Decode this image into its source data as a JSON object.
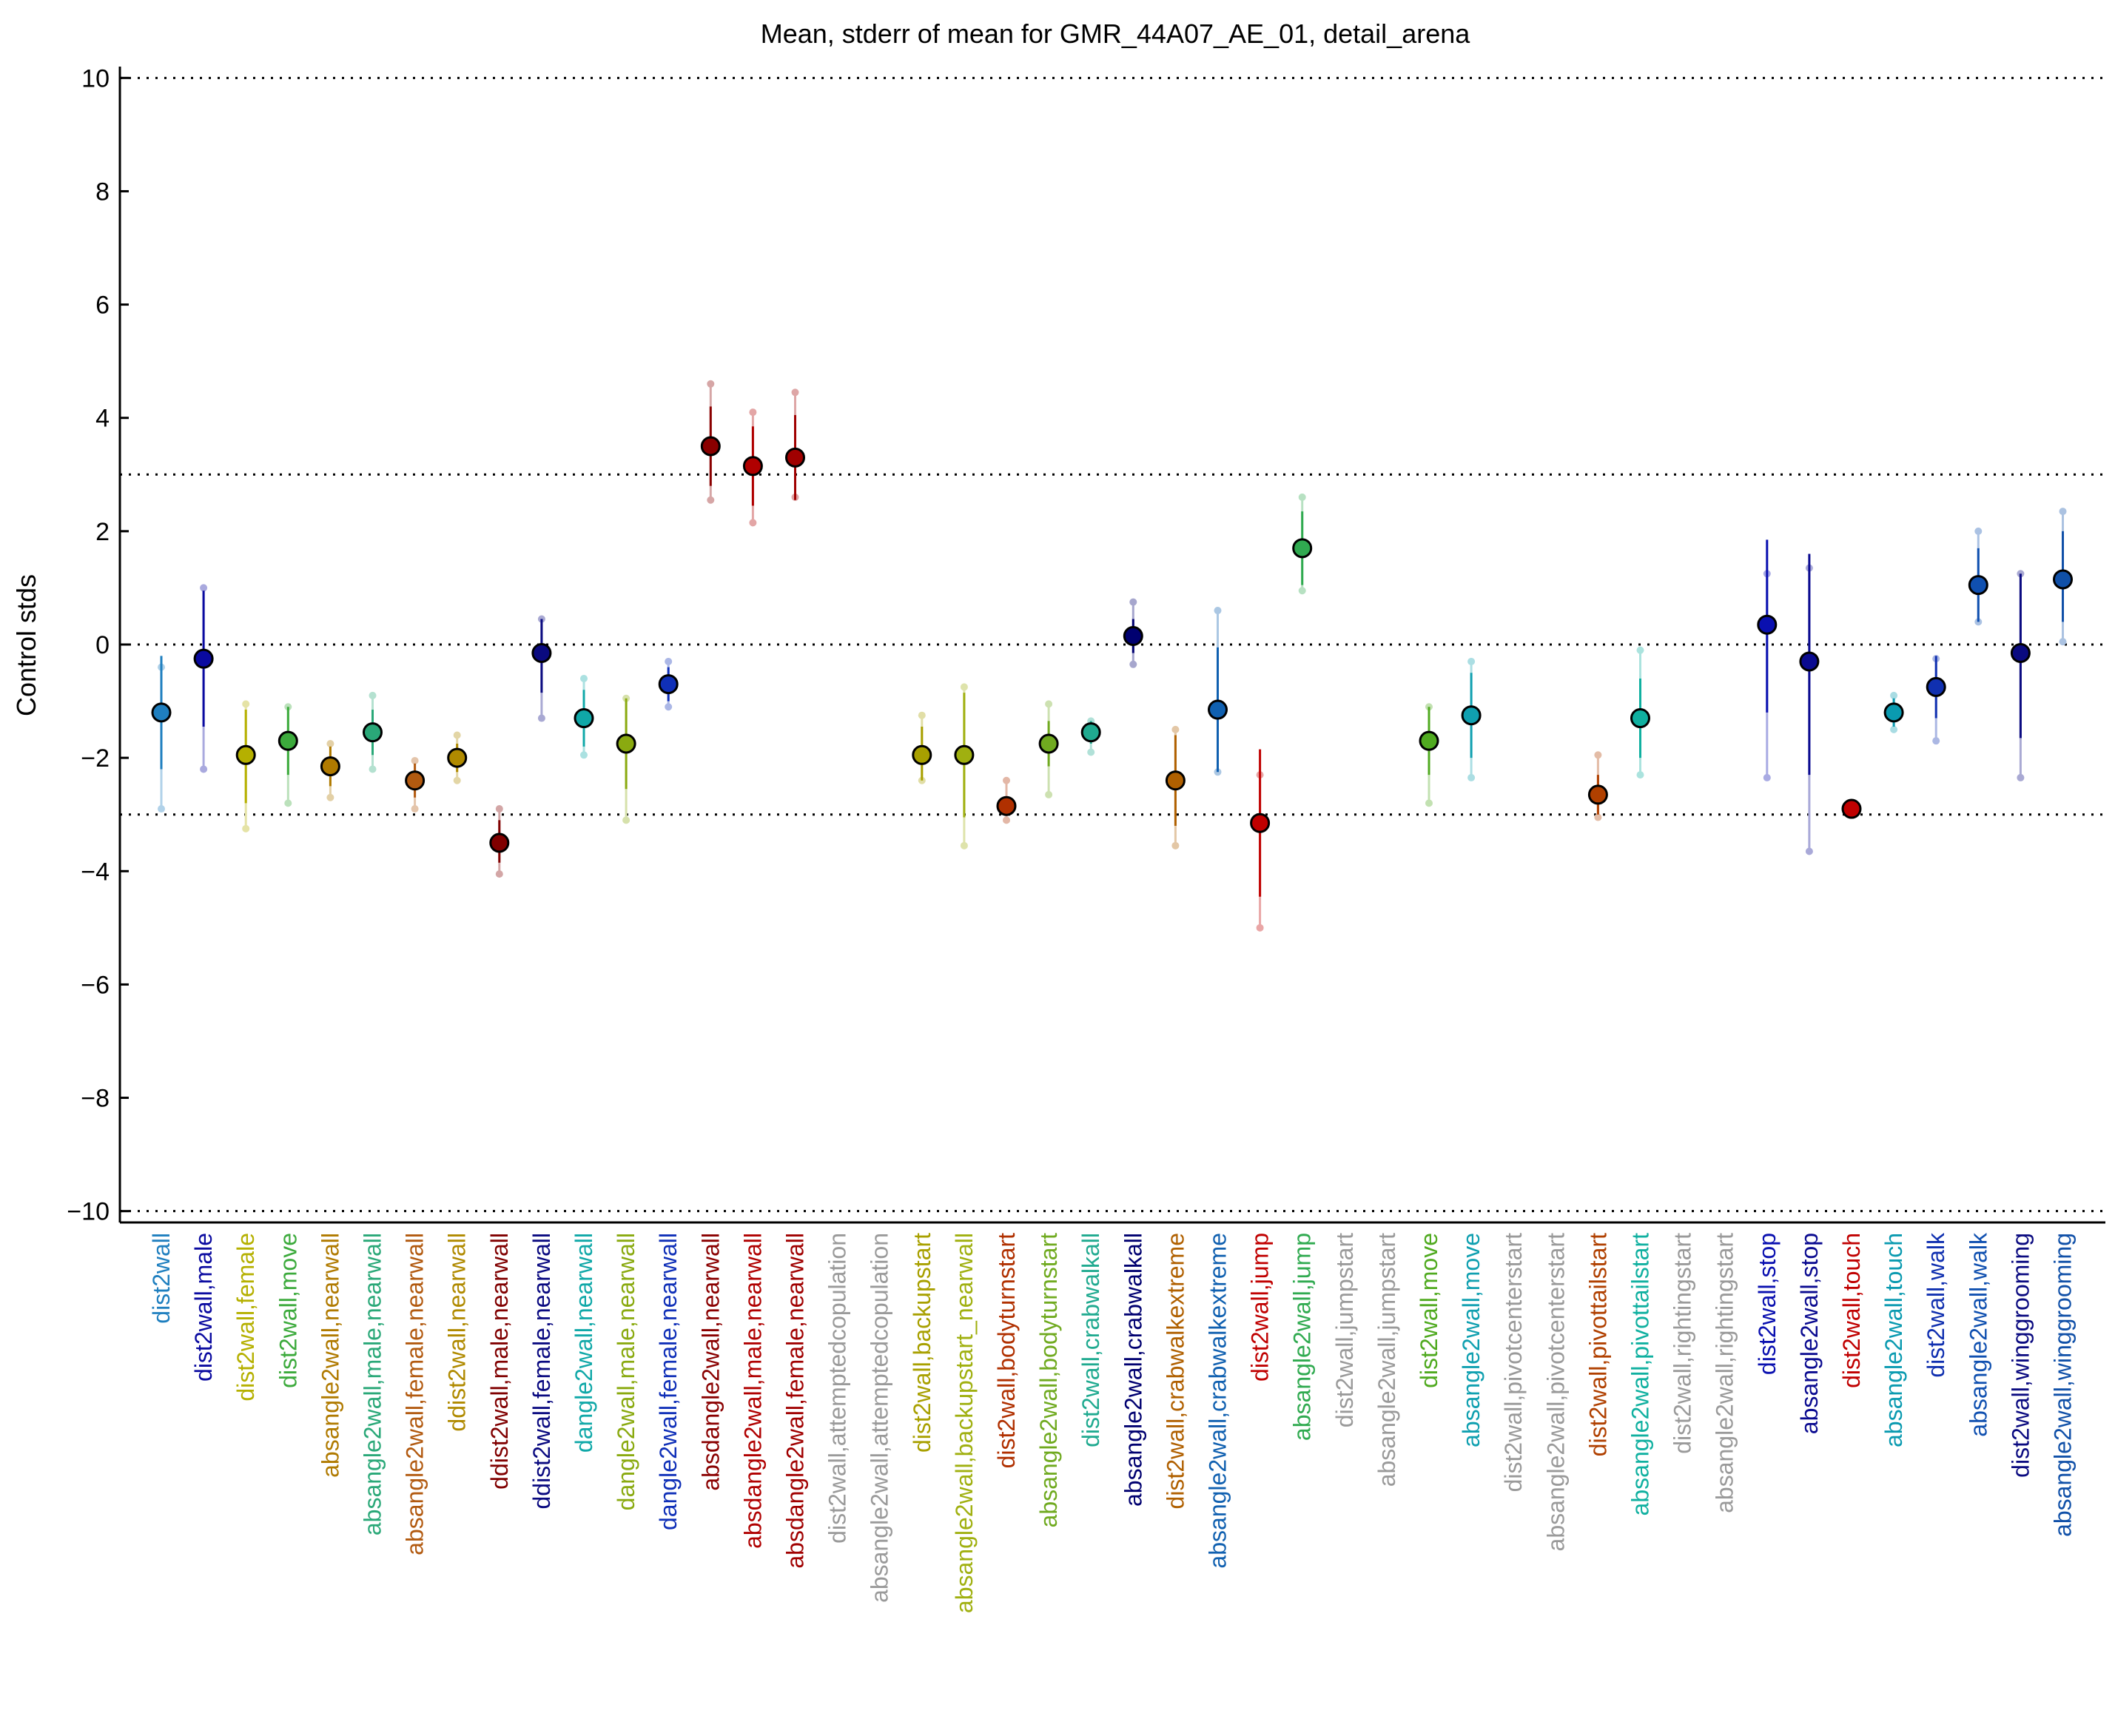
{
  "chart_data": {
    "type": "scatter",
    "title": "Mean, stderr of mean for GMR_44A07_AE_01, detail_arena",
    "xlabel": "",
    "ylabel": "Control stds",
    "ylim": [
      -10.2,
      10.2
    ],
    "yticks": [
      10,
      8,
      6,
      4,
      2,
      0,
      -2,
      -4,
      -6,
      -8,
      -10
    ],
    "ytick_labels": [
      "10",
      "8",
      "6",
      "4",
      "2",
      "0",
      "−2",
      "−4",
      "−6",
      "−8",
      "−10"
    ],
    "reference_lines": [
      10,
      3,
      0,
      -3,
      -10
    ],
    "grid": false,
    "legend": "none",
    "categories": [
      "dist2wall",
      "dist2wall,male",
      "dist2wall,female",
      "dist2wall,move",
      "absangle2wall,nearwall",
      "absangle2wall,male,nearwall",
      "absangle2wall,female,nearwall",
      "ddist2wall,nearwall",
      "ddist2wall,male,nearwall",
      "ddist2wall,female,nearwall",
      "dangle2wall,nearwall",
      "dangle2wall,male,nearwall",
      "dangle2wall,female,nearwall",
      "absdangle2wall,nearwall",
      "absdangle2wall,male,nearwall",
      "absdangle2wall,female,nearwall",
      "dist2wall,attemptedcopulation",
      "absangle2wall,attemptedcopulation",
      "dist2wall,backupstart",
      "absangle2wall,backupstart_nearwall",
      "dist2wall,bodyturnstart",
      "absangle2wall,bodyturnstart",
      "dist2wall,crabwalkall",
      "absangle2wall,crabwalkall",
      "dist2wall,crabwalkextreme",
      "absangle2wall,crabwalkextreme",
      "dist2wall,jump",
      "absangle2wall,jump",
      "dist2wall,jumpstart",
      "absangle2wall,jumpstart",
      "dist2wall,move",
      "absangle2wall,move",
      "dist2wall,pivotcenterstart",
      "absangle2wall,pivotcenterstart",
      "dist2wall,pivottailstart",
      "absangle2wall,pivottailstart",
      "dist2wall,rightingstart",
      "absangle2wall,rightingstart",
      "dist2wall,stop",
      "absangle2wall,stop",
      "dist2wall,touch",
      "absangle2wall,touch",
      "dist2wall,walk",
      "absangle2wall,walk",
      "dist2wall,winggrooming",
      "absangle2wall,winggrooming"
    ],
    "colors": [
      "#1f7fbf",
      "#0a0aa0",
      "#b5b000",
      "#3caa3c",
      "#b07a00",
      "#2aa878",
      "#b25a10",
      "#b08a00",
      "#800000",
      "#0a0a80",
      "#10a8a8",
      "#8aaa10",
      "#1030b8",
      "#8a0000",
      "#b00000",
      "#a00000",
      "#9a9a9a",
      "#9a9a9a",
      "#a8a000",
      "#a0b010",
      "#b03000",
      "#70aa20",
      "#20aa90",
      "#000070",
      "#b06000",
      "#1060b0",
      "#c00000",
      "#30aa50",
      "#9a9a9a",
      "#9a9a9a",
      "#50aa20",
      "#10a0b0",
      "#9a9a9a",
      "#9a9a9a",
      "#b04000",
      "#10b0a0",
      "#9a9a9a",
      "#9a9a9a",
      "#0a10b0",
      "#0a0a90",
      "#c00000",
      "#0a9ab0",
      "#1030b0",
      "#1050b0",
      "#0a0a80",
      "#1050a8"
    ],
    "series": [
      {
        "mean": [
          -1.2,
          -0.25,
          -1.95,
          -1.7,
          -2.15,
          -1.55,
          -2.4,
          -2.0,
          -3.5,
          -0.15,
          -1.3,
          -1.75,
          -0.7,
          3.5,
          3.15,
          3.3,
          null,
          null,
          -1.95,
          -1.95,
          -2.85,
          -1.75,
          -1.55,
          0.15,
          -2.4,
          -1.15,
          -3.15,
          1.7,
          null,
          null,
          -1.7,
          -1.25,
          null,
          null,
          -2.65,
          -1.3,
          null,
          null,
          0.35,
          -0.3,
          -2.9,
          -1.2,
          -0.75,
          1.05,
          -0.15,
          1.15
        ],
        "sem_low": [
          -2.2,
          -1.45,
          -2.8,
          -2.3,
          -2.5,
          -1.95,
          -2.7,
          -2.25,
          -3.85,
          -0.85,
          -1.8,
          -2.55,
          -1.0,
          2.8,
          2.45,
          2.55,
          null,
          null,
          -2.4,
          -3.05,
          -3.0,
          -2.15,
          -1.75,
          -0.15,
          -3.2,
          -2.25,
          -4.45,
          1.05,
          null,
          null,
          -2.3,
          -2.0,
          null,
          null,
          -3.0,
          -2.0,
          null,
          null,
          -1.2,
          -2.3,
          -3.05,
          -1.45,
          -1.3,
          0.4,
          -1.65,
          0.4
        ],
        "sem_high": [
          -0.2,
          0.95,
          -1.15,
          -1.1,
          -1.8,
          -1.15,
          -2.1,
          -1.75,
          -3.1,
          0.45,
          -0.8,
          -0.95,
          -0.4,
          4.2,
          3.85,
          4.05,
          null,
          null,
          -1.45,
          -0.85,
          -2.7,
          -1.35,
          -1.35,
          0.45,
          -1.6,
          -0.05,
          -1.85,
          2.35,
          null,
          null,
          -1.1,
          -0.5,
          null,
          null,
          -2.3,
          -0.6,
          null,
          null,
          1.85,
          1.6,
          -2.75,
          -0.95,
          -0.2,
          1.7,
          1.25,
          2.0
        ],
        "range_low": [
          -2.9,
          -2.2,
          -3.25,
          -2.8,
          -2.7,
          -2.2,
          -2.9,
          -2.4,
          -4.05,
          -1.3,
          -1.95,
          -3.1,
          -1.1,
          2.55,
          2.15,
          2.6,
          null,
          null,
          -2.4,
          -3.55,
          -3.1,
          -2.65,
          -1.9,
          -0.35,
          -3.55,
          -2.25,
          -5.0,
          0.95,
          null,
          null,
          -2.8,
          -2.35,
          null,
          null,
          -3.05,
          -2.3,
          null,
          null,
          -2.35,
          -3.65,
          -2.95,
          -1.5,
          -1.7,
          0.4,
          -2.35,
          0.05
        ],
        "range_high": [
          -0.4,
          1.0,
          -1.05,
          -1.1,
          -1.75,
          -0.9,
          -2.05,
          -1.6,
          -2.9,
          0.45,
          -0.6,
          -0.95,
          -0.3,
          4.6,
          4.1,
          4.45,
          null,
          null,
          -1.25,
          -0.75,
          -2.4,
          -1.05,
          -1.35,
          0.75,
          -1.5,
          0.6,
          -2.3,
          2.6,
          null,
          null,
          -1.1,
          -0.3,
          null,
          null,
          -1.95,
          -0.1,
          null,
          null,
          1.25,
          1.35,
          -2.85,
          -0.9,
          -0.25,
          2.0,
          1.25,
          2.35
        ]
      }
    ]
  }
}
